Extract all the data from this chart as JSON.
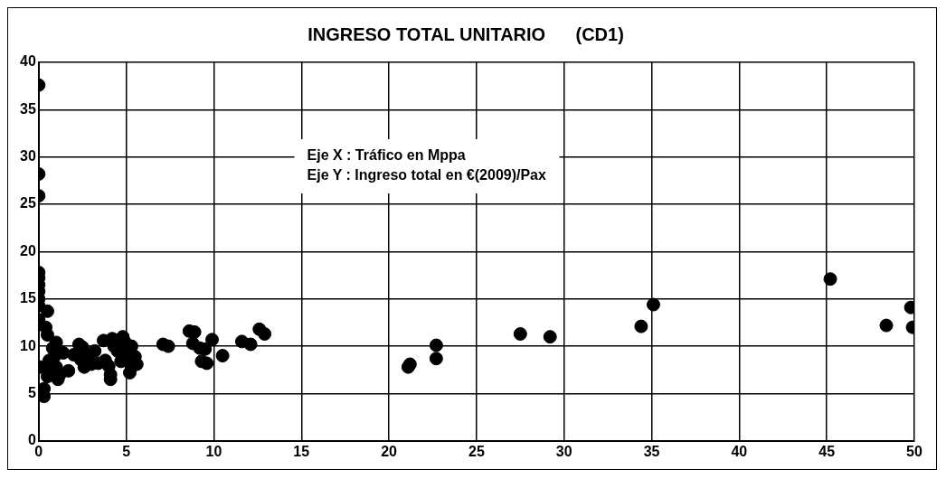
{
  "chart_data": {
    "type": "scatter",
    "title": "INGRESO TOTAL UNITARIO      (CD1)",
    "annotations": [
      "Eje X : Tráfico en Mppa",
      "Eje Y : Ingreso total en €(2009)/Pax"
    ],
    "xlim": [
      0,
      50
    ],
    "xticks": [
      0,
      5,
      10,
      15,
      20,
      25,
      30,
      35,
      40,
      45,
      50
    ],
    "ylim": [
      0,
      40
    ],
    "yticks": [
      0,
      5,
      10,
      15,
      20,
      25,
      30,
      35,
      40
    ],
    "grid": true,
    "legend": false,
    "marker": "circle",
    "series": [
      {
        "color": "#000000",
        "x": [
          0,
          0,
          0,
          0,
          0,
          0,
          0,
          0,
          0,
          0,
          0.3,
          0.3,
          0.1,
          0.4,
          0.5,
          0.5,
          0.6,
          0.7,
          0.5,
          0.8,
          0.9,
          1,
          1,
          1.1,
          1.2,
          1.4,
          1.7,
          2,
          2.3,
          2.5,
          2.4,
          2.6,
          2.8,
          3,
          3.2,
          3.4,
          3.7,
          3.8,
          4,
          4.1,
          4.1,
          4.2,
          4.3,
          4.5,
          4.7,
          4.8,
          4.9,
          5,
          5.1,
          5.2,
          5.3,
          5.5,
          5.6,
          5.3,
          7.1,
          7.4,
          8.6,
          8.9,
          8.8,
          9.2,
          9.3,
          9.6,
          9.5,
          9.9,
          10.5,
          11.6,
          12.1,
          12.6,
          12.9,
          21.1,
          21.2,
          22.7,
          22.7,
          27.5,
          29.2,
          34.4,
          35.1,
          45.2,
          48.4,
          49.8,
          49.9
        ],
        "values": [
          37.6,
          28.2,
          25.9,
          17.8,
          17.2,
          16.5,
          15.8,
          15,
          14.3,
          12.8,
          4.7,
          5.5,
          7.8,
          12,
          13.7,
          11.2,
          8.5,
          7.3,
          6.8,
          9.8,
          8.9,
          10.4,
          7.8,
          6.5,
          7,
          9.3,
          7.4,
          9.1,
          10.2,
          9.9,
          8.6,
          7.8,
          8.9,
          8.1,
          9.5,
          8.2,
          10.6,
          8.5,
          7.9,
          6.5,
          7,
          10.8,
          10,
          9.5,
          8.4,
          11,
          10.5,
          9.8,
          8.8,
          7.2,
          7.8,
          8.9,
          8.1,
          10,
          10.2,
          10,
          11.6,
          11.5,
          10.3,
          9.8,
          8.4,
          8.2,
          9.7,
          10.7,
          9,
          10.5,
          10.2,
          11.8,
          11.3,
          7.8,
          8.1,
          10.1,
          8.7,
          11.3,
          11,
          12.1,
          14.4,
          17.1,
          12.2,
          14.1,
          12
        ]
      }
    ]
  }
}
